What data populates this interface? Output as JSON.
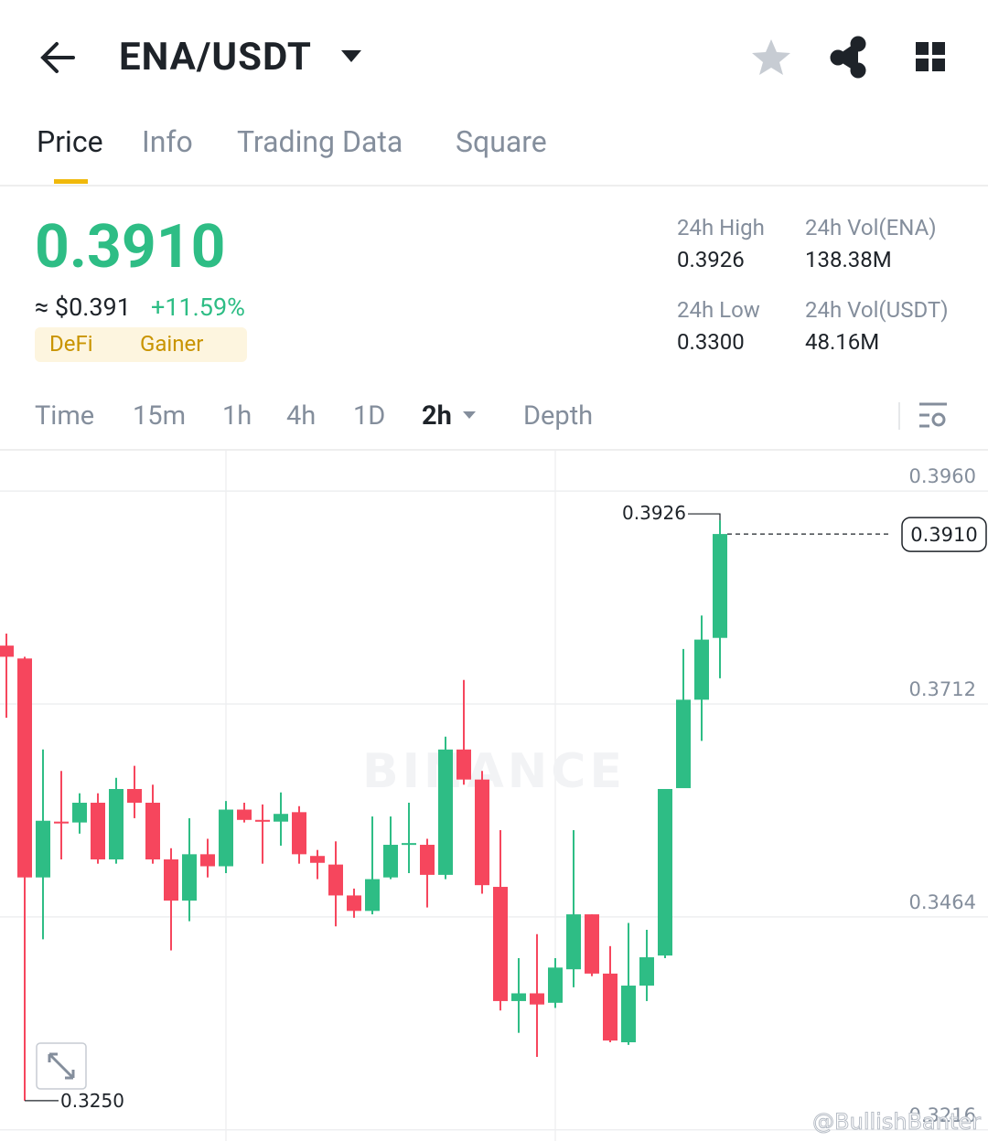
{
  "header": {
    "title": "ENA/USDT"
  },
  "tabs": [
    "Price",
    "Info",
    "Trading Data",
    "Square"
  ],
  "price": {
    "last": "0.3910",
    "approx": "≈ $0.391",
    "change": "+11.59%",
    "tags": [
      "DeFi",
      "Gainer"
    ]
  },
  "stats": [
    {
      "label": "24h High",
      "value": "0.3926"
    },
    {
      "label": "24h Vol(ENA)",
      "value": "138.38M"
    },
    {
      "label": "24h Low",
      "value": "0.3300"
    },
    {
      "label": "24h Vol(USDT)",
      "value": "48.16M"
    }
  ],
  "intervals": [
    "Time",
    "15m",
    "1h",
    "4h",
    "1D",
    "2h",
    "Depth"
  ],
  "chart_data": {
    "type": "candlestick",
    "up_color": "#2ebd85",
    "down_color": "#f6465d",
    "ylim": [
      0.3203,
      0.4007
    ],
    "yticks": [
      {
        "value": 0.396,
        "label": "0.3960"
      },
      0.3712,
      0.3464,
      0.3216
    ],
    "grid": true,
    "watermark": "BINANCE",
    "credit": "@BullishBanter",
    "high_annotation": 0.3926,
    "low_annotation": {
      "value": 0.325,
      "label": "0.3250"
    },
    "last_price": {
      "value": 0.391,
      "label": "0.3910"
    },
    "ohlc": [
      [
        0.378,
        0.3794,
        0.3696,
        0.3767
      ],
      [
        0.3765,
        0.3767,
        0.325,
        0.351
      ],
      [
        0.351,
        0.3659,
        0.3438,
        0.3576
      ],
      [
        0.3575,
        0.3634,
        0.3531,
        0.3573
      ],
      [
        0.3574,
        0.3608,
        0.3561,
        0.3597
      ],
      [
        0.3597,
        0.3608,
        0.3526,
        0.3531
      ],
      [
        0.3531,
        0.3626,
        0.3526,
        0.3613
      ],
      [
        0.3613,
        0.364,
        0.3579,
        0.3597
      ],
      [
        0.3597,
        0.3618,
        0.3526,
        0.3531
      ],
      [
        0.3531,
        0.3544,
        0.3425,
        0.3483
      ],
      [
        0.3483,
        0.3579,
        0.3459,
        0.3537
      ],
      [
        0.3537,
        0.3555,
        0.351,
        0.3523
      ],
      [
        0.3523,
        0.3599,
        0.3515,
        0.3589
      ],
      [
        0.3589,
        0.3597,
        0.3574,
        0.3577
      ],
      [
        0.3577,
        0.3595,
        0.3526,
        0.3575
      ],
      [
        0.3575,
        0.3609,
        0.3547,
        0.3584
      ],
      [
        0.3586,
        0.3593,
        0.3526,
        0.3537
      ],
      [
        0.3535,
        0.3542,
        0.3508,
        0.3527
      ],
      [
        0.3525,
        0.3552,
        0.3453,
        0.3489
      ],
      [
        0.3489,
        0.3497,
        0.3463,
        0.3471
      ],
      [
        0.3471,
        0.3581,
        0.3467,
        0.3508
      ],
      [
        0.351,
        0.3581,
        0.3508,
        0.3548
      ],
      [
        0.3548,
        0.3597,
        0.3515,
        0.355
      ],
      [
        0.3548,
        0.3555,
        0.3475,
        0.3513
      ],
      [
        0.3513,
        0.3674,
        0.3508,
        0.3659
      ],
      [
        0.3659,
        0.374,
        0.3618,
        0.3624
      ],
      [
        0.3624,
        0.3634,
        0.3491,
        0.3501
      ],
      [
        0.3499,
        0.3565,
        0.3355,
        0.3366
      ],
      [
        0.3366,
        0.3416,
        0.3329,
        0.3375
      ],
      [
        0.3375,
        0.3444,
        0.3301,
        0.3362
      ],
      [
        0.3364,
        0.3416,
        0.3358,
        0.3405
      ],
      [
        0.3403,
        0.3565,
        0.3382,
        0.3467
      ],
      [
        0.3467,
        0.3467,
        0.3395,
        0.3398
      ],
      [
        0.3398,
        0.343,
        0.3318,
        0.332
      ],
      [
        0.3318,
        0.3457,
        0.3315,
        0.3384
      ],
      [
        0.3384,
        0.3449,
        0.3366,
        0.3417
      ],
      [
        0.3419,
        0.3613,
        0.3416,
        0.3613
      ],
      [
        0.3614,
        0.3776,
        0.3614,
        0.3717
      ],
      [
        0.3717,
        0.3815,
        0.3669,
        0.3787
      ],
      [
        0.3789,
        0.3926,
        0.3742,
        0.391
      ]
    ]
  }
}
